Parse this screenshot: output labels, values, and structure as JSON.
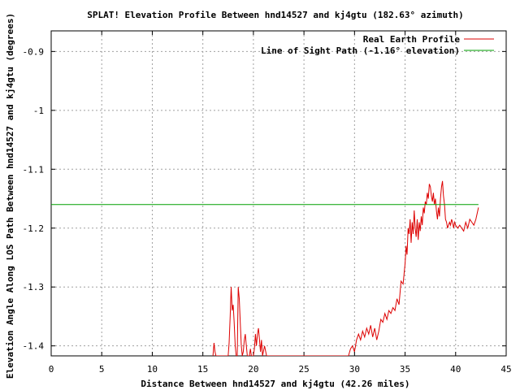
{
  "chart_data": {
    "type": "line",
    "title": "SPLAT! Elevation Profile Between hnd14527 and kj4gtu (182.63° azimuth)",
    "xlabel": "Distance Between hnd14527 and kj4gtu (42.26 miles)",
    "ylabel": "Elevation Angle Along LOS Path Between hnd14527 and kj4gtu (degrees)",
    "xlim": [
      0,
      45
    ],
    "ylim": [
      -1.417,
      -0.865
    ],
    "xticks": [
      0,
      5,
      10,
      15,
      20,
      25,
      30,
      35,
      40,
      45
    ],
    "yticks": [
      -0.9,
      -1,
      -1.1,
      -1.2,
      -1.3,
      -1.4
    ],
    "ytick_labels": [
      "-0.9",
      "-1",
      "-1.1",
      "-1.2",
      "-1.3",
      "-1.4"
    ],
    "grid": true,
    "legend_position": "top-right",
    "colors": {
      "profile": "#dd0000",
      "los": "#00a000"
    },
    "series": [
      {
        "name": "Real Earth Profile",
        "x": [
          16.0,
          16.1,
          16.2,
          16.3,
          17.5,
          17.6,
          17.7,
          17.8,
          17.9,
          18.0,
          18.1,
          18.2,
          18.3,
          18.4,
          18.5,
          18.6,
          18.7,
          18.8,
          18.9,
          19.0,
          19.1,
          19.2,
          19.3,
          19.4,
          19.6,
          19.7,
          19.8,
          20.0,
          20.1,
          20.2,
          20.3,
          20.4,
          20.5,
          20.6,
          20.7,
          20.8,
          20.9,
          21.1,
          21.3,
          21.5,
          29.4,
          29.6,
          29.8,
          30.0,
          30.2,
          30.4,
          30.6,
          30.8,
          31.0,
          31.2,
          31.4,
          31.6,
          31.8,
          32.0,
          32.2,
          32.4,
          32.6,
          32.8,
          33.0,
          33.2,
          33.4,
          33.6,
          33.8,
          34.0,
          34.2,
          34.4,
          34.6,
          34.8,
          35.0,
          35.1,
          35.2,
          35.3,
          35.4,
          35.5,
          35.6,
          35.7,
          35.8,
          35.9,
          36.0,
          36.1,
          36.2,
          36.3,
          36.4,
          36.5,
          36.6,
          36.7,
          36.8,
          36.9,
          37.0,
          37.1,
          37.2,
          37.3,
          37.4,
          37.5,
          37.6,
          37.7,
          37.8,
          37.9,
          38.0,
          38.1,
          38.2,
          38.3,
          38.4,
          38.5,
          38.6,
          38.7,
          38.8,
          38.9,
          39.0,
          39.1,
          39.2,
          39.3,
          39.4,
          39.5,
          39.6,
          39.7,
          39.8,
          39.9,
          40.0,
          40.2,
          40.4,
          40.6,
          40.8,
          41.0,
          41.2,
          41.4,
          41.6,
          41.8,
          42.0,
          42.26
        ],
        "y": [
          -1.417,
          -1.395,
          -1.41,
          -1.417,
          -1.417,
          -1.395,
          -1.35,
          -1.3,
          -1.34,
          -1.33,
          -1.36,
          -1.4,
          -1.417,
          -1.417,
          -1.3,
          -1.32,
          -1.36,
          -1.4,
          -1.417,
          -1.41,
          -1.39,
          -1.38,
          -1.4,
          -1.417,
          -1.417,
          -1.405,
          -1.417,
          -1.417,
          -1.405,
          -1.38,
          -1.4,
          -1.38,
          -1.37,
          -1.39,
          -1.41,
          -1.39,
          -1.417,
          -1.4,
          -1.417,
          -1.417,
          -1.417,
          -1.405,
          -1.4,
          -1.41,
          -1.39,
          -1.38,
          -1.39,
          -1.375,
          -1.385,
          -1.37,
          -1.38,
          -1.365,
          -1.385,
          -1.37,
          -1.39,
          -1.375,
          -1.355,
          -1.36,
          -1.345,
          -1.355,
          -1.34,
          -1.345,
          -1.335,
          -1.34,
          -1.32,
          -1.33,
          -1.29,
          -1.295,
          -1.26,
          -1.23,
          -1.245,
          -1.2,
          -1.21,
          -1.185,
          -1.225,
          -1.19,
          -1.21,
          -1.17,
          -1.2,
          -1.215,
          -1.185,
          -1.22,
          -1.19,
          -1.205,
          -1.18,
          -1.195,
          -1.165,
          -1.175,
          -1.155,
          -1.16,
          -1.14,
          -1.15,
          -1.125,
          -1.13,
          -1.145,
          -1.155,
          -1.14,
          -1.16,
          -1.15,
          -1.17,
          -1.185,
          -1.165,
          -1.18,
          -1.15,
          -1.13,
          -1.12,
          -1.145,
          -1.16,
          -1.185,
          -1.19,
          -1.2,
          -1.195,
          -1.19,
          -1.195,
          -1.185,
          -1.19,
          -1.2,
          -1.19,
          -1.195,
          -1.2,
          -1.195,
          -1.2,
          -1.205,
          -1.19,
          -1.2,
          -1.185,
          -1.19,
          -1.195,
          -1.185,
          -1.165
        ]
      },
      {
        "name": "Line of Sight Path (-1.16° elevation)",
        "x": [
          0,
          42.26
        ],
        "y": [
          -1.16,
          -1.16
        ]
      }
    ]
  }
}
